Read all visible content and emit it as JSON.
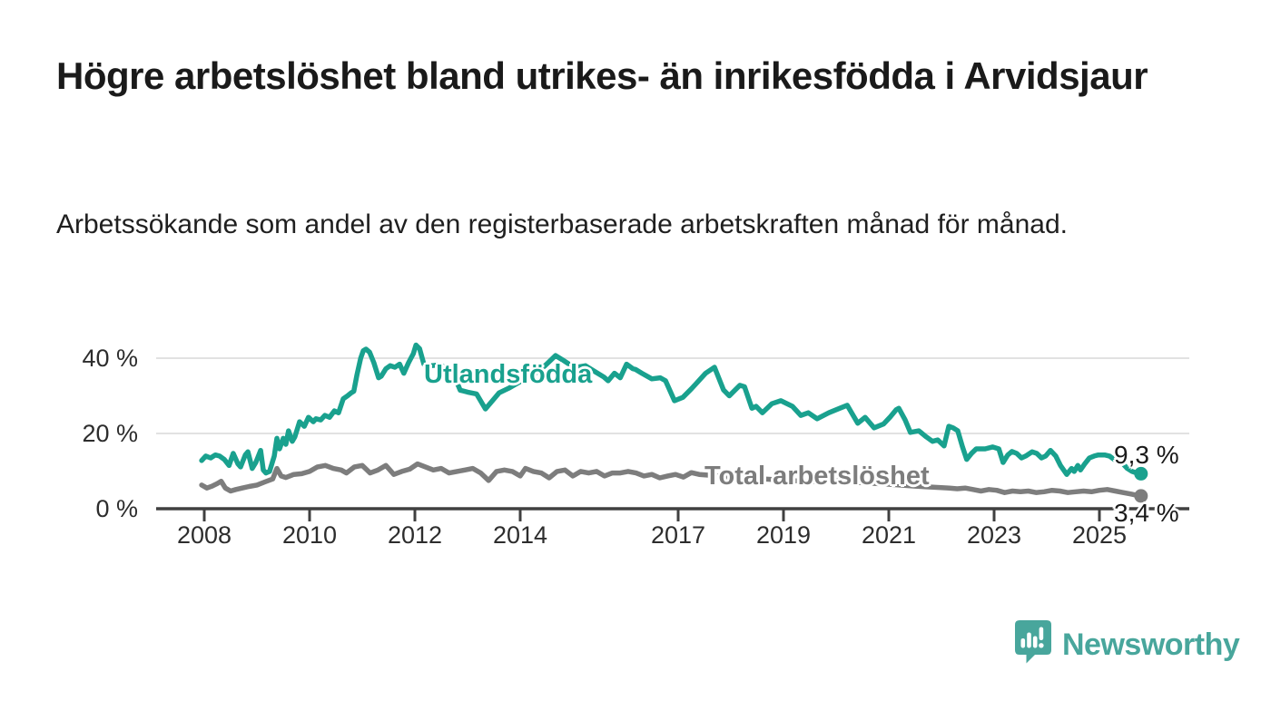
{
  "header": {
    "title": "Högre arbetslöshet bland utrikes- än inrikesfödda i Arvidsjaur",
    "subtitle": "Arbetssökande som andel av den registerbaserade arbetskraften månad för månad."
  },
  "chart_data": {
    "type": "line",
    "title": "Högre arbetslöshet bland utrikes- än inrikesfödda i Arvidsjaur",
    "subtitle": "Arbetssökande som andel av den registerbaserade arbetskraften månad för månad.",
    "unit": "%",
    "x_axis": {
      "ticks": [
        {
          "year": 2008,
          "label": "2008"
        },
        {
          "year": 2010,
          "label": "2010"
        },
        {
          "year": 2012,
          "label": "2012"
        },
        {
          "year": 2014,
          "label": "2014"
        },
        {
          "year": 2017,
          "label": "2017"
        },
        {
          "year": 2019,
          "label": "2019"
        },
        {
          "year": 2021,
          "label": "2021"
        },
        {
          "year": 2023,
          "label": "2023"
        },
        {
          "year": 2025,
          "label": "2025"
        }
      ]
    },
    "y_axis": {
      "range": [
        0,
        45
      ],
      "grid": true,
      "ticks": [
        {
          "value": 40,
          "label": "40 %"
        },
        {
          "value": 20,
          "label": "20 %"
        },
        {
          "value": 0,
          "label": "0 %"
        }
      ]
    },
    "style": {
      "grid_color": "#d8d8d8",
      "axis_color": "#404040"
    },
    "series": [
      {
        "name": "Utlandsfödda",
        "color": "#19a18e",
        "end_label": "9,3 %",
        "end_value": 9.3,
        "points": [
          [
            2007.95,
            12.8
          ],
          [
            2008.03,
            14.0
          ],
          [
            2008.12,
            13.5
          ],
          [
            2008.21,
            14.3
          ],
          [
            2008.29,
            14.0
          ],
          [
            2008.38,
            13.1
          ],
          [
            2008.47,
            11.5
          ],
          [
            2008.55,
            14.7
          ],
          [
            2008.64,
            11.9
          ],
          [
            2008.69,
            11.1
          ],
          [
            2008.78,
            14.3
          ],
          [
            2008.83,
            15.1
          ],
          [
            2008.91,
            10.7
          ],
          [
            2008.98,
            12.3
          ],
          [
            2009.07,
            15.5
          ],
          [
            2009.12,
            10.3
          ],
          [
            2009.17,
            9.5
          ],
          [
            2009.24,
            9.9
          ],
          [
            2009.33,
            14.0
          ],
          [
            2009.38,
            18.7
          ],
          [
            2009.43,
            15.9
          ],
          [
            2009.5,
            18.7
          ],
          [
            2009.55,
            17.1
          ],
          [
            2009.6,
            20.7
          ],
          [
            2009.67,
            17.9
          ],
          [
            2009.72,
            19.1
          ],
          [
            2009.81,
            23.1
          ],
          [
            2009.9,
            21.9
          ],
          [
            2009.98,
            24.3
          ],
          [
            2010.07,
            23.1
          ],
          [
            2010.12,
            23.9
          ],
          [
            2010.21,
            23.6
          ],
          [
            2010.29,
            24.8
          ],
          [
            2010.38,
            24.3
          ],
          [
            2010.47,
            26.0
          ],
          [
            2010.55,
            25.5
          ],
          [
            2010.64,
            29.2
          ],
          [
            2010.72,
            30.0
          ],
          [
            2010.79,
            30.8
          ],
          [
            2010.84,
            31.2
          ],
          [
            2010.9,
            35.6
          ],
          [
            2010.97,
            40.0
          ],
          [
            2011.02,
            42.0
          ],
          [
            2011.07,
            42.4
          ],
          [
            2011.14,
            41.6
          ],
          [
            2011.22,
            38.8
          ],
          [
            2011.31,
            34.8
          ],
          [
            2011.36,
            35.2
          ],
          [
            2011.45,
            37.2
          ],
          [
            2011.53,
            38.0
          ],
          [
            2011.62,
            37.6
          ],
          [
            2011.71,
            38.4
          ],
          [
            2011.79,
            36.0
          ],
          [
            2011.88,
            38.8
          ],
          [
            2011.97,
            41.2
          ],
          [
            2012.02,
            43.5
          ],
          [
            2012.09,
            42.5
          ],
          [
            2012.17,
            38.4
          ],
          [
            2012.31,
            38.0
          ],
          [
            2012.45,
            38.2
          ],
          [
            2012.57,
            37.6
          ],
          [
            2012.74,
            35.6
          ],
          [
            2012.86,
            31.5
          ],
          [
            2013.0,
            31.0
          ],
          [
            2013.17,
            30.5
          ],
          [
            2013.34,
            26.5
          ],
          [
            2013.52,
            29.5
          ],
          [
            2013.6,
            30.8
          ],
          [
            2013.78,
            32.0
          ],
          [
            2014.03,
            34.0
          ],
          [
            2014.29,
            36.0
          ],
          [
            2014.47,
            38.0
          ],
          [
            2014.67,
            40.7
          ],
          [
            2014.81,
            39.5
          ],
          [
            2015.03,
            37.5
          ],
          [
            2015.24,
            38.0
          ],
          [
            2015.41,
            36.5
          ],
          [
            2015.59,
            35.0
          ],
          [
            2015.67,
            34.0
          ],
          [
            2015.79,
            36.0
          ],
          [
            2015.9,
            34.8
          ],
          [
            2016.02,
            38.4
          ],
          [
            2016.14,
            37.2
          ],
          [
            2016.19,
            37.0
          ],
          [
            2016.31,
            36.0
          ],
          [
            2016.5,
            34.5
          ],
          [
            2016.66,
            34.8
          ],
          [
            2016.76,
            34.0
          ],
          [
            2016.93,
            28.7
          ],
          [
            2017.09,
            29.6
          ],
          [
            2017.26,
            32.0
          ],
          [
            2017.34,
            33.2
          ],
          [
            2017.52,
            36.0
          ],
          [
            2017.69,
            37.6
          ],
          [
            2017.86,
            31.6
          ],
          [
            2017.97,
            30.0
          ],
          [
            2018.17,
            32.8
          ],
          [
            2018.26,
            32.4
          ],
          [
            2018.4,
            26.7
          ],
          [
            2018.48,
            27.2
          ],
          [
            2018.6,
            25.5
          ],
          [
            2018.78,
            27.9
          ],
          [
            2018.95,
            28.7
          ],
          [
            2019.17,
            27.2
          ],
          [
            2019.33,
            24.8
          ],
          [
            2019.47,
            25.5
          ],
          [
            2019.64,
            23.9
          ],
          [
            2019.86,
            25.5
          ],
          [
            2020.07,
            26.7
          ],
          [
            2020.21,
            27.5
          ],
          [
            2020.41,
            22.7
          ],
          [
            2020.55,
            24.3
          ],
          [
            2020.72,
            21.5
          ],
          [
            2020.9,
            22.5
          ],
          [
            2021.02,
            24.3
          ],
          [
            2021.14,
            26.3
          ],
          [
            2021.19,
            26.7
          ],
          [
            2021.31,
            23.6
          ],
          [
            2021.41,
            20.3
          ],
          [
            2021.57,
            20.7
          ],
          [
            2021.71,
            19.1
          ],
          [
            2021.83,
            17.9
          ],
          [
            2021.93,
            18.3
          ],
          [
            2022.05,
            16.7
          ],
          [
            2022.14,
            21.9
          ],
          [
            2022.22,
            21.5
          ],
          [
            2022.31,
            20.7
          ],
          [
            2022.4,
            16.4
          ],
          [
            2022.48,
            13.1
          ],
          [
            2022.57,
            14.7
          ],
          [
            2022.66,
            15.9
          ],
          [
            2022.83,
            15.9
          ],
          [
            2022.97,
            16.4
          ],
          [
            2023.09,
            15.9
          ],
          [
            2023.17,
            12.3
          ],
          [
            2023.26,
            14.3
          ],
          [
            2023.34,
            15.2
          ],
          [
            2023.43,
            14.7
          ],
          [
            2023.52,
            13.5
          ],
          [
            2023.6,
            14.0
          ],
          [
            2023.72,
            15.1
          ],
          [
            2023.81,
            14.7
          ],
          [
            2023.9,
            13.5
          ],
          [
            2023.98,
            14.0
          ],
          [
            2024.07,
            15.5
          ],
          [
            2024.17,
            14.0
          ],
          [
            2024.26,
            11.5
          ],
          [
            2024.38,
            9.1
          ],
          [
            2024.47,
            10.7
          ],
          [
            2024.52,
            9.9
          ],
          [
            2024.59,
            11.5
          ],
          [
            2024.64,
            10.3
          ],
          [
            2024.72,
            11.9
          ],
          [
            2024.81,
            13.5
          ],
          [
            2024.9,
            14.0
          ],
          [
            2024.98,
            14.3
          ],
          [
            2025.1,
            14.3
          ],
          [
            2025.19,
            14.0
          ],
          [
            2025.28,
            13.1
          ],
          [
            2025.36,
            13.5
          ],
          [
            2025.45,
            11.9
          ],
          [
            2025.53,
            10.7
          ],
          [
            2025.62,
            9.9
          ],
          [
            2025.71,
            9.5
          ],
          [
            2025.79,
            9.3
          ]
        ]
      },
      {
        "name": "Total arbetslöshet",
        "color": "#7d7d7d",
        "end_label": "3,4 %",
        "end_value": 3.4,
        "points": [
          [
            2007.95,
            6.3
          ],
          [
            2008.05,
            5.5
          ],
          [
            2008.15,
            6.0
          ],
          [
            2008.25,
            6.7
          ],
          [
            2008.32,
            7.3
          ],
          [
            2008.4,
            5.5
          ],
          [
            2008.5,
            4.7
          ],
          [
            2008.6,
            5.1
          ],
          [
            2008.72,
            5.5
          ],
          [
            2008.85,
            5.9
          ],
          [
            2009.0,
            6.3
          ],
          [
            2009.15,
            7.1
          ],
          [
            2009.3,
            7.9
          ],
          [
            2009.38,
            10.7
          ],
          [
            2009.46,
            8.7
          ],
          [
            2009.55,
            8.3
          ],
          [
            2009.7,
            9.1
          ],
          [
            2009.85,
            9.3
          ],
          [
            2010.0,
            9.9
          ],
          [
            2010.15,
            11.1
          ],
          [
            2010.3,
            11.5
          ],
          [
            2010.45,
            10.7
          ],
          [
            2010.6,
            10.3
          ],
          [
            2010.7,
            9.5
          ],
          [
            2010.85,
            11.1
          ],
          [
            2011.0,
            11.5
          ],
          [
            2011.15,
            9.5
          ],
          [
            2011.3,
            10.3
          ],
          [
            2011.45,
            11.5
          ],
          [
            2011.6,
            9.1
          ],
          [
            2011.75,
            9.9
          ],
          [
            2011.9,
            10.5
          ],
          [
            2012.05,
            11.9
          ],
          [
            2012.2,
            11.1
          ],
          [
            2012.35,
            10.3
          ],
          [
            2012.5,
            10.7
          ],
          [
            2012.65,
            9.5
          ],
          [
            2012.8,
            9.9
          ],
          [
            2012.95,
            10.3
          ],
          [
            2013.1,
            10.7
          ],
          [
            2013.25,
            9.5
          ],
          [
            2013.4,
            7.5
          ],
          [
            2013.55,
            9.9
          ],
          [
            2013.7,
            10.3
          ],
          [
            2013.85,
            9.9
          ],
          [
            2014.0,
            8.7
          ],
          [
            2014.1,
            10.7
          ],
          [
            2014.25,
            9.9
          ],
          [
            2014.4,
            9.5
          ],
          [
            2014.55,
            8.2
          ],
          [
            2014.7,
            9.9
          ],
          [
            2014.85,
            10.3
          ],
          [
            2015.0,
            8.7
          ],
          [
            2015.15,
            9.9
          ],
          [
            2015.3,
            9.5
          ],
          [
            2015.45,
            9.9
          ],
          [
            2015.6,
            8.7
          ],
          [
            2015.75,
            9.5
          ],
          [
            2015.9,
            9.5
          ],
          [
            2016.05,
            9.9
          ],
          [
            2016.2,
            9.5
          ],
          [
            2016.35,
            8.7
          ],
          [
            2016.5,
            9.1
          ],
          [
            2016.65,
            8.2
          ],
          [
            2016.8,
            8.7
          ],
          [
            2016.95,
            9.1
          ],
          [
            2017.1,
            8.4
          ],
          [
            2017.25,
            9.6
          ],
          [
            2017.4,
            9.1
          ],
          [
            2017.7,
            8.8
          ],
          [
            2018.0,
            8.4
          ],
          [
            2018.5,
            8.0
          ],
          [
            2019.0,
            7.6
          ],
          [
            2019.5,
            7.2
          ],
          [
            2020.0,
            7.4
          ],
          [
            2020.5,
            6.9
          ],
          [
            2021.0,
            6.5
          ],
          [
            2021.5,
            6.0
          ],
          [
            2022.0,
            5.6
          ],
          [
            2022.15,
            5.5
          ],
          [
            2022.3,
            5.3
          ],
          [
            2022.45,
            5.5
          ],
          [
            2022.6,
            5.1
          ],
          [
            2022.75,
            4.7
          ],
          [
            2022.9,
            5.1
          ],
          [
            2023.05,
            4.9
          ],
          [
            2023.2,
            4.3
          ],
          [
            2023.35,
            4.7
          ],
          [
            2023.5,
            4.5
          ],
          [
            2023.65,
            4.7
          ],
          [
            2023.8,
            4.3
          ],
          [
            2023.95,
            4.5
          ],
          [
            2024.1,
            4.9
          ],
          [
            2024.25,
            4.7
          ],
          [
            2024.4,
            4.3
          ],
          [
            2024.55,
            4.5
          ],
          [
            2024.7,
            4.7
          ],
          [
            2024.85,
            4.5
          ],
          [
            2025.0,
            4.9
          ],
          [
            2025.15,
            5.1
          ],
          [
            2025.3,
            4.7
          ],
          [
            2025.45,
            4.3
          ],
          [
            2025.6,
            3.9
          ],
          [
            2025.7,
            3.6
          ],
          [
            2025.79,
            3.4
          ]
        ]
      }
    ]
  },
  "footer": {
    "brand": "Newsworthy",
    "brand_color": "#48a69c"
  }
}
